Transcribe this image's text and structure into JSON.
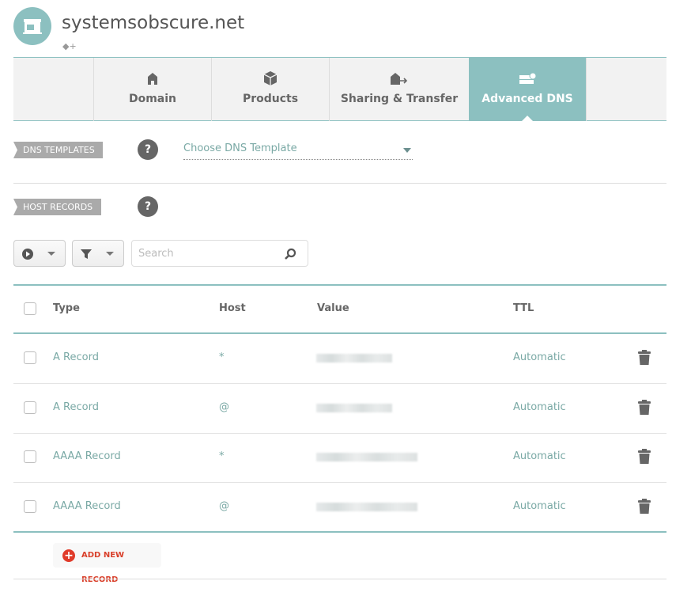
{
  "header": {
    "domain": "systemsobscure.net",
    "avatar_icon": "store-icon",
    "tag_icon": "tag-add-icon"
  },
  "tabs": [
    {
      "label": "Domain",
      "icon": "home-icon"
    },
    {
      "label": "Products",
      "icon": "box-icon"
    },
    {
      "label": "Sharing & Transfer",
      "icon": "home-transfer-icon"
    },
    {
      "label": "Advanced DNS",
      "icon": "server-icon",
      "active": true
    }
  ],
  "dns_templates": {
    "label": "DNS TEMPLATES",
    "help": "?",
    "select_value": "Choose DNS Template"
  },
  "host_records": {
    "label": "HOST RECORDS",
    "help": "?"
  },
  "toolbar": {
    "search_placeholder": "Search"
  },
  "table": {
    "columns": [
      "Type",
      "Host",
      "Value",
      "TTL"
    ],
    "rows": [
      {
        "type": "A Record",
        "host": "*",
        "ttl": "Automatic"
      },
      {
        "type": "A Record",
        "host": "@",
        "ttl": "Automatic"
      },
      {
        "type": "AAAA Record",
        "host": "*",
        "ttl": "Automatic"
      },
      {
        "type": "AAAA Record",
        "host": "@",
        "ttl": "Automatic"
      }
    ]
  },
  "add_record": {
    "label": "ADD NEW RECORD"
  },
  "colors": {
    "accent": "#8cc0c0",
    "value_text": "#7aa9a5",
    "add": "#e03b2a"
  }
}
